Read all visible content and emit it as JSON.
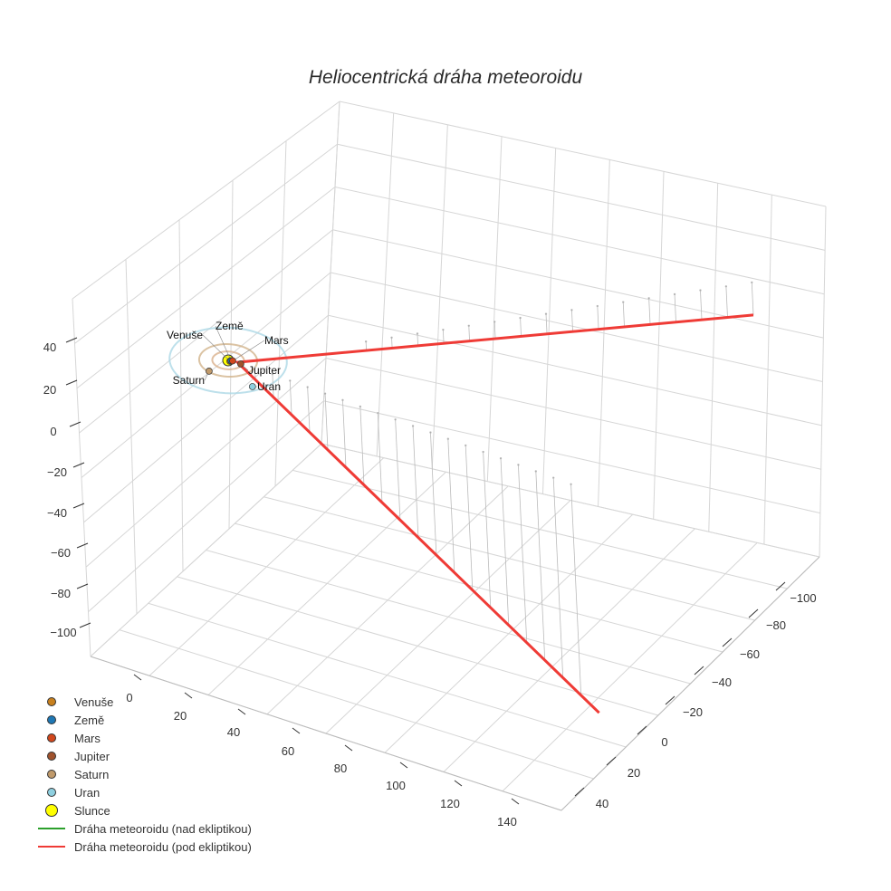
{
  "chart_data": {
    "type": "scatter3d",
    "title": "Heliocentrická dráha meteoroidu",
    "axes": {
      "x": {
        "ticks": [
          0,
          20,
          40,
          60,
          80,
          100,
          120,
          140
        ]
      },
      "y": {
        "ticks": [
          -100,
          -80,
          -60,
          -40,
          -20,
          0,
          20,
          40
        ]
      },
      "z": {
        "ticks": [
          40,
          20,
          0,
          -20,
          -40,
          -60,
          -80,
          -100
        ]
      }
    },
    "sun": {
      "name": "Slunce",
      "x": 0,
      "y": 0,
      "z": 0,
      "color": "#ffff00"
    },
    "planets": [
      {
        "name": "Venuše",
        "x": 0.72,
        "y": 0.1,
        "z": 0,
        "orbit_radius": 0.72,
        "color": "#c8801e"
      },
      {
        "name": "Země",
        "x": 0.9,
        "y": -0.3,
        "z": 0,
        "orbit_radius": 1.0,
        "color": "#1f77b4"
      },
      {
        "name": "Mars",
        "x": 1.4,
        "y": -0.5,
        "z": 0,
        "orbit_radius": 1.52,
        "color": "#d2471c"
      },
      {
        "name": "Jupiter",
        "x": 4.5,
        "y": -0.3,
        "z": 0,
        "orbit_radius": 5.2,
        "color": "#a0522d"
      },
      {
        "name": "Saturn",
        "x": -2.4,
        "y": 8.8,
        "z": 0,
        "orbit_radius": 9.5,
        "color": "#c09a6b"
      },
      {
        "name": "Uran",
        "x": 14,
        "y": 9.4,
        "z": 0,
        "orbit_radius": 19.2,
        "color": "#8fd0e0"
      }
    ],
    "orbit_colors": {
      "Jupiter": "#d9b08c",
      "Saturn": "#d2b48c",
      "Uran": "#add8e6"
    },
    "trajectory_above": {
      "name": "Dráha meteoroidu (nad ekliptikou)",
      "color": "#2ca02c",
      "points": []
    },
    "trajectory_below": {
      "name": "Dráha meteoroidu (pod ekliptikou)",
      "color": "#ef3b36",
      "points": [
        [
          125.4,
          -129,
          -16
        ],
        [
          2.8,
          -1.1,
          -0.5
        ],
        [
          136.8,
          6.1,
          -109
        ]
      ]
    },
    "legend": [
      "Venuše",
      "Země",
      "Mars",
      "Jupiter",
      "Saturn",
      "Uran",
      "Slunce",
      "Dráha meteoroidu (nad ekliptikou)",
      "Dráha meteoroidu (pod ekliptikou)"
    ],
    "legend_position": "bottom-left"
  }
}
